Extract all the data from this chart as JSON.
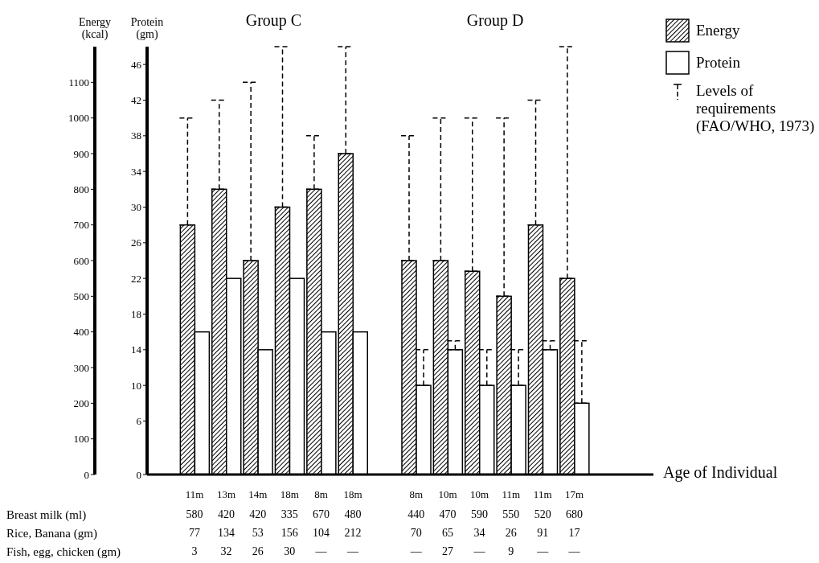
{
  "chart_data": {
    "type": "bar",
    "categories": [
      null,
      "11m",
      "13m",
      "14m",
      "18m",
      "8m",
      "18m",
      null,
      "8m",
      "10m",
      "10m",
      "11m",
      "11m",
      "17m",
      null,
      null
    ],
    "series": [
      {
        "name": "Energy",
        "color": "#000000",
        "values": [
          null,
          700,
          800,
          600,
          750,
          800,
          900,
          null,
          600,
          600,
          570,
          500,
          700,
          550,
          null,
          null
        ],
        "errors": [
          null,
          [
            700,
            1000
          ],
          [
            800,
            1050
          ],
          [
            600,
            1100
          ],
          [
            750,
            1200
          ],
          [
            800,
            950
          ],
          [
            900,
            1200
          ],
          null,
          [
            600,
            950
          ],
          [
            600,
            1000
          ],
          [
            570,
            1000
          ],
          [
            500,
            1000
          ],
          [
            700,
            1050
          ],
          [
            550,
            1200
          ],
          null,
          null
        ]
      },
      {
        "name": "Protein",
        "color": "#ffffff",
        "axis": "y2",
        "values": [
          null,
          16,
          22,
          14,
          22,
          16,
          16,
          null,
          10,
          14,
          10,
          10,
          14,
          8,
          null,
          null
        ],
        "errors": [
          null,
          null,
          null,
          null,
          null,
          null,
          null,
          null,
          [
            10,
            14
          ],
          [
            14,
            15
          ],
          [
            10,
            14
          ],
          [
            10,
            14
          ],
          [
            14,
            15
          ],
          [
            8,
            15
          ],
          null,
          null
        ]
      }
    ],
    "ylabel": "Energy (kcal)",
    "y2label": "Protein (gm)",
    "xlabel": "Age of Individual",
    "ylim": [
      0,
      1200
    ],
    "yticks": [
      0,
      100,
      200,
      300,
      400,
      500,
      600,
      700,
      800,
      900,
      1000,
      1100
    ],
    "y2lim": [
      0,
      48
    ],
    "y2ticks": [
      0,
      6,
      10,
      14,
      18,
      22,
      26,
      30,
      34,
      38,
      42,
      46
    ],
    "legend": "top right",
    "annotations": [
      "Group C",
      "Group D",
      "Levels of requirements (FAO/WHO, 1973)",
      "Breast milk (ml)",
      "Rice, Banana (gm)",
      "Fish, egg, chicken (gm)",
      "580",
      "420",
      "420",
      "335",
      "670",
      "480",
      "440",
      "470",
      "590",
      "550",
      "520",
      "680",
      "77",
      "134",
      "53",
      "156",
      "104",
      "212",
      "70",
      "65",
      "34",
      "26",
      "91",
      "17",
      "3",
      "32",
      "26",
      "30",
      "—",
      "—",
      "—",
      "27",
      "—",
      "9",
      "—",
      "—"
    ]
  }
}
